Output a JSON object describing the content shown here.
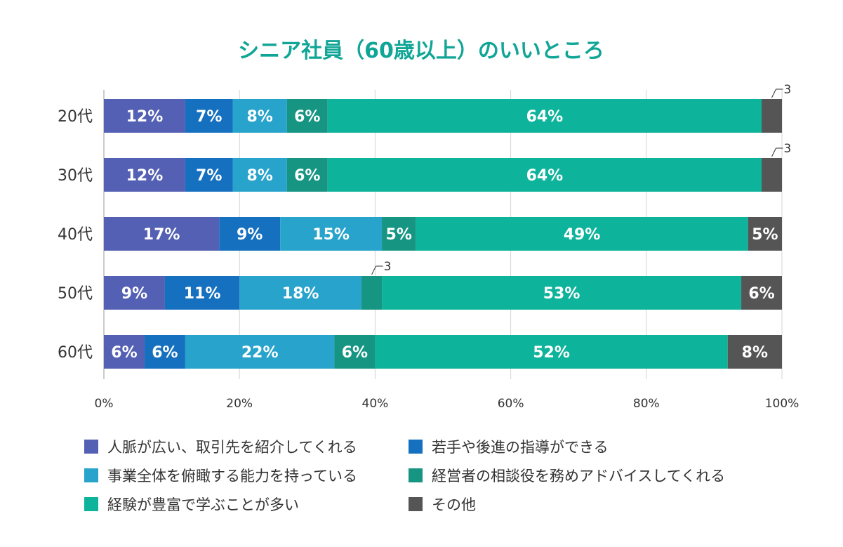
{
  "chart_data": {
    "type": "bar",
    "orientation": "horizontal",
    "stacked": true,
    "title": "シニア社員（60歳以上）のいいところ",
    "categories": [
      "20代",
      "30代",
      "40代",
      "50代",
      "60代"
    ],
    "x_ticks": [
      "0%",
      "20%",
      "40%",
      "60%",
      "80%",
      "100%"
    ],
    "xlim": [
      0,
      100
    ],
    "grid": true,
    "legend_position": "bottom",
    "series": [
      {
        "name": "人脈が広い、取引先を紹介してくれる",
        "color": "#5460b3",
        "values": [
          12,
          12,
          17,
          9,
          6
        ],
        "labels": [
          "12%",
          "12%",
          "17%",
          "9%",
          "6%"
        ]
      },
      {
        "name": "若手や後進の指導ができる",
        "color": "#1670c0",
        "values": [
          7,
          7,
          9,
          11,
          6
        ],
        "labels": [
          "7%",
          "7%",
          "9%",
          "11%",
          "6%"
        ]
      },
      {
        "name": "事業全体を俯瞰する能力を持っている",
        "color": "#27a3cc",
        "values": [
          8,
          8,
          15,
          18,
          22
        ],
        "labels": [
          "8%",
          "8%",
          "15%",
          "18%",
          "22%"
        ]
      },
      {
        "name": "経営者の相談役を務めアドバイスしてくれる",
        "color": "#169582",
        "values": [
          6,
          6,
          5,
          3,
          6
        ],
        "labels": [
          "6%",
          "6%",
          "5%",
          "3",
          "6%"
        ]
      },
      {
        "name": "経験が豊富で学ぶことが多い",
        "color": "#0eb39b",
        "values": [
          64,
          64,
          49,
          53,
          52
        ],
        "labels": [
          "64%",
          "64%",
          "49%",
          "53%",
          "52%"
        ]
      },
      {
        "name": "その他",
        "color": "#555555",
        "values": [
          3,
          3,
          5,
          6,
          8
        ],
        "labels": [
          "3",
          "3",
          "5%",
          "6%",
          "8%"
        ]
      }
    ]
  }
}
